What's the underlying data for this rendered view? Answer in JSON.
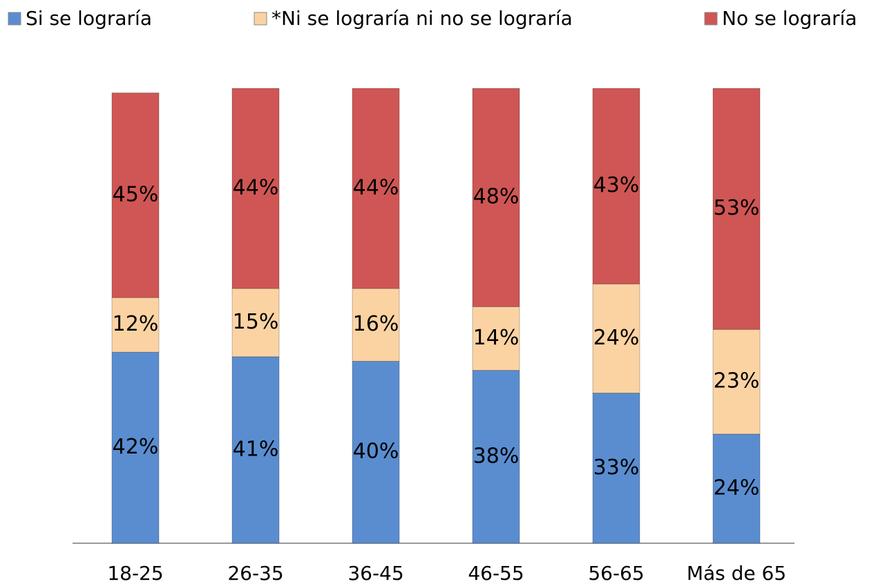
{
  "chart_data": {
    "type": "stacked_bar",
    "categories": [
      "18-25",
      "26-35",
      "36-45",
      "46-55",
      "56-65",
      "Más de 65"
    ],
    "series": [
      {
        "name": "Si se lograría",
        "color": "#5a8dd0",
        "values": [
          42,
          41,
          40,
          38,
          33,
          24
        ],
        "value_labels": [
          "42%",
          "41%",
          "40%",
          "38%",
          "33%",
          "24%"
        ]
      },
      {
        "name": "*Ni se lograría ni no se lograría",
        "color": "#fbd3a3",
        "values": [
          12,
          15,
          16,
          14,
          24,
          23
        ],
        "value_labels": [
          "12%",
          "15%",
          "16%",
          "14%",
          "24%",
          "23%"
        ]
      },
      {
        "name": "No se lograría",
        "color": "#cf5654",
        "values": [
          45,
          44,
          44,
          48,
          43,
          53
        ],
        "value_labels": [
          "45%",
          "44%",
          "44%",
          "48%",
          "43%",
          "53%"
        ]
      }
    ],
    "ylim": [
      0,
      100
    ],
    "legend": "top"
  }
}
